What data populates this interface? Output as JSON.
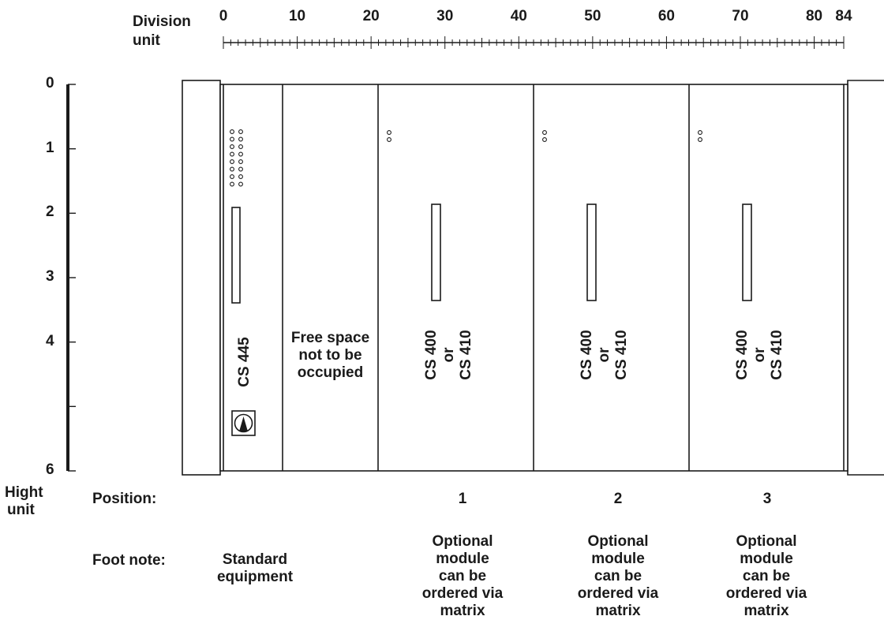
{
  "division_axis": {
    "label_line1": "Division",
    "label_line2": "unit",
    "ticks": [
      "0",
      "10",
      "20",
      "30",
      "40",
      "50",
      "60",
      "70",
      "80",
      "84"
    ]
  },
  "height_axis": {
    "label_line1": "Hight",
    "label_line2": "unit",
    "ticks": [
      "0",
      "1",
      "2",
      "3",
      "4",
      "6"
    ]
  },
  "modules": {
    "cs445": "CS 445",
    "free_space": [
      "Free space",
      "not to be",
      "occupied"
    ],
    "slot_label": [
      "CS 400",
      "or",
      "CS 410"
    ]
  },
  "row_labels": {
    "position": "Position:",
    "foot_note": "Foot note:"
  },
  "positions": [
    "1",
    "2",
    "3"
  ],
  "foot_notes": {
    "standard": [
      "Standard",
      "equipment"
    ],
    "optional": [
      "Optional",
      "module",
      "can be",
      "ordered via",
      "matrix"
    ]
  },
  "colors": {
    "line": "#1a1a1a",
    "background": "#ffffff"
  }
}
